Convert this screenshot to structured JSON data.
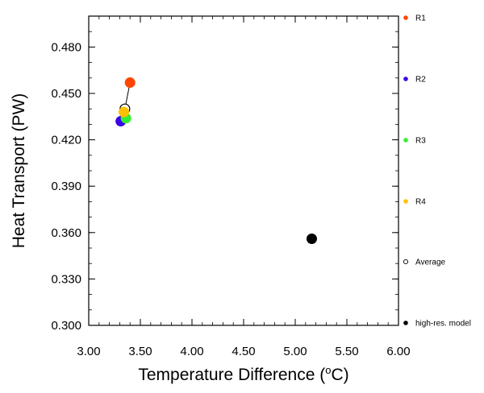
{
  "chart_data": {
    "type": "scatter",
    "title": "",
    "xlabel": "Temperature Difference (",
    "xlabel_unit_sup": "o",
    "xlabel_unit_tail": "C)",
    "ylabel": "Heat Transport (PW)",
    "xlim": [
      3.0,
      6.0
    ],
    "ylim": [
      0.3,
      0.5
    ],
    "x_ticks": [
      3.0,
      3.5,
      4.0,
      4.5,
      5.0,
      5.5,
      6.0
    ],
    "x_tick_labels": [
      "3.00",
      "3.50",
      "4.00",
      "4.50",
      "5.00",
      "5.50",
      "6.00"
    ],
    "y_ticks": [
      0.3,
      0.33,
      0.36,
      0.39,
      0.42,
      0.45,
      0.48
    ],
    "y_tick_labels": [
      "0.300",
      "0.330",
      "0.360",
      "0.390",
      "0.420",
      "0.450",
      "0.480"
    ],
    "grid": false,
    "legend_placement": "right, outside plot",
    "series": [
      {
        "name": "R1",
        "color": "#ff4500",
        "marker": "filled",
        "x": 3.4,
        "y": 0.457
      },
      {
        "name": "R2",
        "color": "#3d00e6",
        "marker": "filled",
        "x": 3.31,
        "y": 0.432
      },
      {
        "name": "R3",
        "color": "#33ee33",
        "marker": "filled",
        "x": 3.36,
        "y": 0.434
      },
      {
        "name": "R4",
        "color": "#ffc000",
        "marker": "filled",
        "x": 3.34,
        "y": 0.438
      },
      {
        "name": "Average",
        "color": "#000000",
        "marker": "open",
        "x": 3.35,
        "y": 0.44
      },
      {
        "name": "high-res. model",
        "color": "#000000",
        "marker": "filled",
        "x": 5.16,
        "y": 0.356
      }
    ],
    "connector": {
      "from": "R1",
      "to": "Average"
    }
  }
}
